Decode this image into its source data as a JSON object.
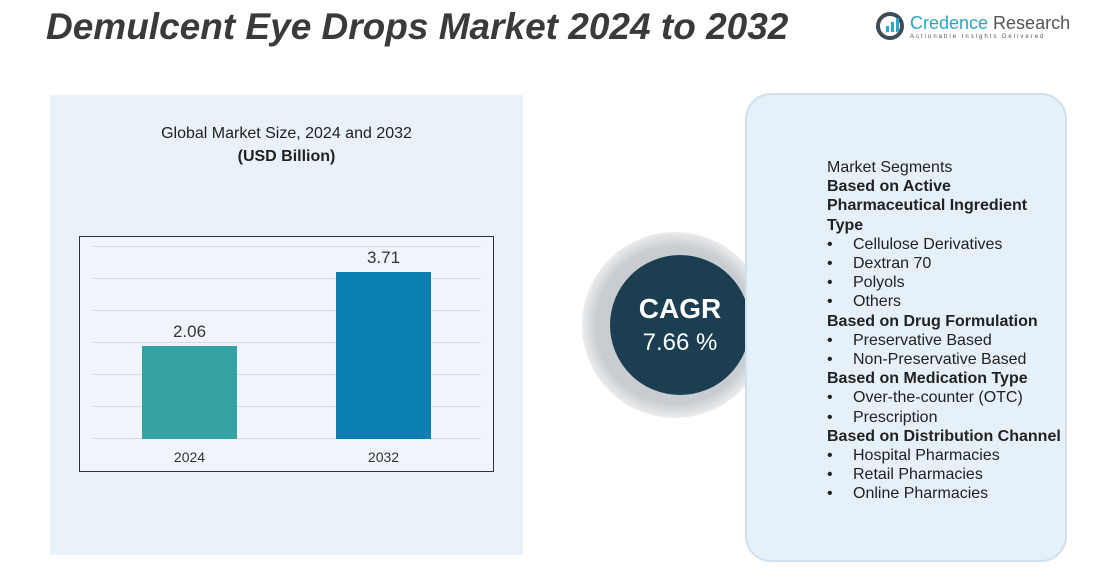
{
  "title": "Demulcent Eye Drops Market 2024 to 2032",
  "logo": {
    "name_a": "Credence",
    "name_b": " Research",
    "tagline": "Actionable Insights Delivered"
  },
  "chart_data": {
    "type": "bar",
    "title": "Global Market Size, 2024 and 2032",
    "subtitle": "(USD Billion)",
    "categories": [
      "2024",
      "2032"
    ],
    "values": [
      2.06,
      3.71
    ],
    "colors": [
      "#35a3a3",
      "#0a80b2"
    ],
    "ylim": [
      0,
      4
    ],
    "grid": true
  },
  "cagr": {
    "label": "CAGR",
    "value": "7.66 %"
  },
  "segments": {
    "heading": "Market Segments",
    "groups": [
      {
        "title": "Based on Active Pharmaceutical Ingredient Type",
        "items": [
          "Cellulose  Derivatives",
          "Dextran 70",
          "Polyols",
          "Others"
        ]
      },
      {
        "title": "Based on Drug Formulation",
        "items": [
          "Preservative Based",
          "Non-Preservative Based"
        ]
      },
      {
        "title": "Based on Medication Type",
        "items": [
          "Over-the-counter (OTC)",
          "Prescription"
        ]
      },
      {
        "title": "Based on Distribution Channel",
        "items": [
          "Hospital Pharmacies",
          "Retail Pharmacies",
          "Online Pharmacies"
        ]
      }
    ]
  }
}
